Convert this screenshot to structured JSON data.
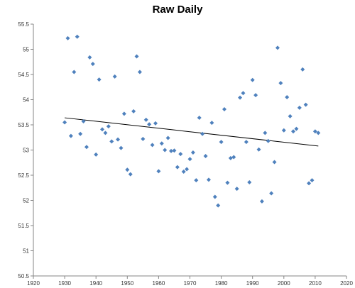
{
  "chart_data": {
    "type": "scatter",
    "title": "Raw Daily",
    "xlabel": "",
    "ylabel": "",
    "xlim": [
      1920,
      2020
    ],
    "ylim": [
      50.5,
      55.5
    ],
    "xticks": [
      "1920",
      "1930",
      "1940",
      "1950",
      "1960",
      "1970",
      "1980",
      "1990",
      "2000",
      "2010",
      "2020"
    ],
    "yticks": [
      "50.5",
      "51",
      "51.5",
      "52",
      "52.5",
      "53",
      "53.5",
      "54",
      "54.5",
      "55",
      "55.5"
    ],
    "grid": false,
    "marker_color": "#4f81bd",
    "trendline_color": "#000000",
    "points": [
      [
        1930,
        53.55
      ],
      [
        1931,
        55.22
      ],
      [
        1932,
        53.28
      ],
      [
        1933,
        54.55
      ],
      [
        1934,
        55.25
      ],
      [
        1935,
        53.32
      ],
      [
        1936,
        53.57
      ],
      [
        1937,
        53.06
      ],
      [
        1938,
        54.84
      ],
      [
        1939,
        54.71
      ],
      [
        1940,
        52.91
      ],
      [
        1941,
        54.4
      ],
      [
        1942,
        53.41
      ],
      [
        1943,
        53.34
      ],
      [
        1944,
        53.47
      ],
      [
        1945,
        53.17
      ],
      [
        1946,
        54.46
      ],
      [
        1947,
        53.21
      ],
      [
        1948,
        53.04
      ],
      [
        1949,
        53.72
      ],
      [
        1950,
        52.61
      ],
      [
        1951,
        52.52
      ],
      [
        1952,
        53.77
      ],
      [
        1953,
        54.86
      ],
      [
        1954,
        54.55
      ],
      [
        1955,
        53.22
      ],
      [
        1956,
        53.6
      ],
      [
        1957,
        53.51
      ],
      [
        1958,
        53.1
      ],
      [
        1959,
        53.53
      ],
      [
        1960,
        52.58
      ],
      [
        1961,
        53.13
      ],
      [
        1962,
        53.0
      ],
      [
        1963,
        53.24
      ],
      [
        1964,
        52.98
      ],
      [
        1965,
        52.99
      ],
      [
        1966,
        52.66
      ],
      [
        1967,
        52.92
      ],
      [
        1968,
        52.57
      ],
      [
        1969,
        52.62
      ],
      [
        1970,
        52.82
      ],
      [
        1971,
        52.95
      ],
      [
        1972,
        52.4
      ],
      [
        1973,
        53.64
      ],
      [
        1974,
        53.32
      ],
      [
        1975,
        52.88
      ],
      [
        1976,
        52.41
      ],
      [
        1977,
        53.54
      ],
      [
        1978,
        52.07
      ],
      [
        1979,
        51.9
      ],
      [
        1980,
        53.16
      ],
      [
        1981,
        53.81
      ],
      [
        1982,
        52.35
      ],
      [
        1983,
        52.84
      ],
      [
        1984,
        52.86
      ],
      [
        1985,
        52.23
      ],
      [
        1986,
        54.04
      ],
      [
        1987,
        54.13
      ],
      [
        1988,
        53.16
      ],
      [
        1989,
        52.36
      ],
      [
        1990,
        54.39
      ],
      [
        1991,
        54.09
      ],
      [
        1992,
        53.01
      ],
      [
        1993,
        51.98
      ],
      [
        1994,
        53.34
      ],
      [
        1995,
        53.18
      ],
      [
        1996,
        52.14
      ],
      [
        1997,
        52.76
      ],
      [
        1998,
        55.03
      ],
      [
        1999,
        54.33
      ],
      [
        2000,
        53.39
      ],
      [
        2001,
        54.05
      ],
      [
        2002,
        53.67
      ],
      [
        2003,
        53.37
      ],
      [
        2004,
        53.42
      ],
      [
        2005,
        53.84
      ],
      [
        2006,
        54.6
      ],
      [
        2007,
        53.9
      ],
      [
        2008,
        52.34
      ],
      [
        2009,
        52.4
      ],
      [
        2010,
        53.37
      ],
      [
        2011,
        53.34
      ]
    ],
    "trendline": {
      "x": [
        1930,
        2011
      ],
      "y": [
        53.64,
        53.08
      ]
    }
  }
}
